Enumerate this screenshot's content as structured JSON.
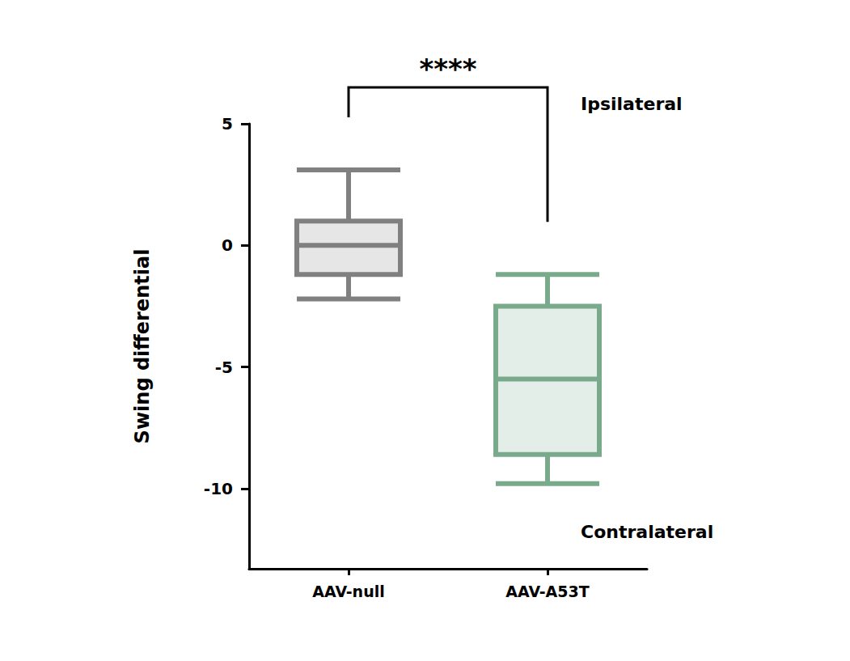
{
  "chart_data": {
    "type": "boxplot",
    "ylabel": "Swing differential",
    "categories": [
      "AAV-null",
      "AAV-A53T"
    ],
    "values": [
      [
        -2.2,
        -1.2,
        0,
        1.0,
        3.1
      ],
      [
        -9.8,
        -8.6,
        -5.5,
        -2.5,
        -1.2
      ]
    ],
    "colors": [
      "#808080",
      "#7aaa8c"
    ],
    "ylim": [
      -13.3,
      5
    ],
    "yticks": [
      -10,
      -5,
      0,
      5
    ],
    "grid": false,
    "significance": "****",
    "annotations": [
      "Ipsilateral",
      "Contralateral"
    ]
  }
}
